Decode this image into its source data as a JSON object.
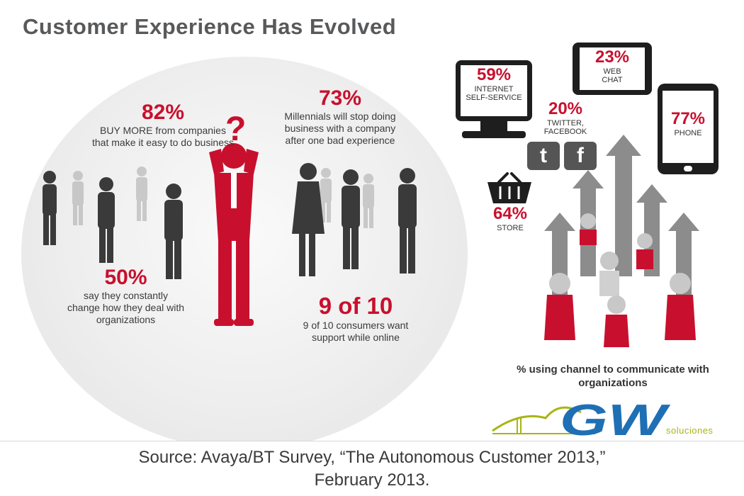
{
  "title": "Customer Experience Has Evolved",
  "stats": {
    "buy_more": {
      "value": "82%",
      "text": "BUY MORE from companies that make it easy to do business"
    },
    "millennials": {
      "value": "73%",
      "text": "Millennials will stop doing business with a company after one bad experience"
    },
    "change": {
      "value": "50%",
      "text": "say they constantly change how they deal with organizations"
    },
    "nine_of_ten": {
      "value": "9 of 10",
      "text": "9 of 10 consumers want support while online"
    }
  },
  "channels": {
    "internet": {
      "value": "59%",
      "label_1": "INTERNET",
      "label_2": "SELF-SERVICE"
    },
    "web_chat": {
      "value": "23%",
      "label_1": "WEB",
      "label_2": "CHAT"
    },
    "social": {
      "value": "20%",
      "label_1": "TWITTER,",
      "label_2": "FACEBOOK"
    },
    "phone": {
      "value": "77%",
      "label": "PHONE"
    },
    "store": {
      "value": "64%",
      "label": "STORE"
    },
    "twitter_glyph": "t",
    "facebook_glyph": "f"
  },
  "channel_caption": "% using channel to communicate with organizations",
  "logo": {
    "text": "GW",
    "subtext": "soluciones"
  },
  "source": {
    "line1": "Source: Avaya/BT Survey, “The Autonomous Customer 2013,”",
    "line2": "February 2013."
  },
  "icons": [
    "question-mark",
    "monitor-icon",
    "tablet-icon",
    "phone-icon",
    "twitter-icon",
    "facebook-icon",
    "shopping-basket-icon",
    "up-arrow-icon",
    "person-silhouette-icon"
  ],
  "colors": {
    "accent": "#c8102e",
    "text": "#58595b",
    "logo_blue": "#1f6fb5",
    "logo_green": "#a8b512"
  }
}
